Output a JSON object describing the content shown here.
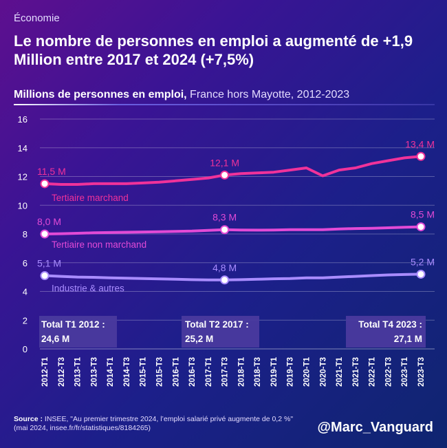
{
  "header": {
    "kicker": "Économie",
    "title": "Le nombre de personnes en emploi a augmenté de +1,9 Million entre 2017 et 2024 (+7,5%)",
    "subtitle_bold": "Millions de personnes en emploi,",
    "subtitle_light": " France hors Mayotte, 2012-2023"
  },
  "chart_data": {
    "type": "line",
    "x": [
      "2012-T1",
      "2012-T3",
      "2013-T1",
      "2013-T3",
      "2014-T1",
      "2014-T3",
      "2015-T1",
      "2015-T3",
      "2016-T1",
      "2016-T3",
      "2017-T1",
      "2017-T3",
      "2018-T1",
      "2018-T3",
      "2019-T1",
      "2019-T3",
      "2020-T1",
      "2020-T3",
      "2021-T1",
      "2021-T3",
      "2022-T1",
      "2022-T3",
      "2023-T1",
      "2023-T3"
    ],
    "ylim": [
      0,
      16
    ],
    "yticks": [
      0,
      2,
      4,
      6,
      8,
      10,
      12,
      14,
      16
    ],
    "grid": true,
    "series": [
      {
        "name": "Tertiaire marchand",
        "color": "#f0329a",
        "values": [
          11.5,
          11.45,
          11.45,
          11.5,
          11.5,
          11.5,
          11.55,
          11.6,
          11.7,
          11.8,
          11.9,
          12.1,
          12.2,
          12.25,
          12.3,
          12.45,
          12.6,
          12.05,
          12.45,
          12.6,
          12.9,
          13.1,
          13.3,
          13.4
        ]
      },
      {
        "name": "Tertiaire non marchand",
        "color": "#e24ad6",
        "values": [
          8.0,
          8.02,
          8.05,
          8.08,
          8.1,
          8.12,
          8.14,
          8.16,
          8.18,
          8.2,
          8.25,
          8.3,
          8.28,
          8.27,
          8.28,
          8.3,
          8.3,
          8.3,
          8.35,
          8.38,
          8.4,
          8.43,
          8.47,
          8.5
        ]
      },
      {
        "name": "Industrie & autres",
        "color": "#a98cff",
        "values": [
          5.1,
          5.05,
          5.0,
          4.98,
          4.95,
          4.92,
          4.9,
          4.87,
          4.85,
          4.82,
          4.8,
          4.8,
          4.82,
          4.85,
          4.88,
          4.9,
          4.95,
          4.95,
          5.0,
          5.05,
          5.1,
          5.15,
          5.18,
          5.2
        ]
      }
    ],
    "annotations": [
      {
        "series": 0,
        "x": "2012-T1",
        "label": "11,5 M"
      },
      {
        "series": 0,
        "x": "2017-T3",
        "label": "12,1 M"
      },
      {
        "series": 0,
        "x": "2023-T3",
        "label": "13,4 M"
      },
      {
        "series": 1,
        "x": "2012-T1",
        "label": "8,0 M"
      },
      {
        "series": 1,
        "x": "2017-T3",
        "label": "8,3 M"
      },
      {
        "series": 1,
        "x": "2023-T3",
        "label": "8,5 M"
      },
      {
        "series": 2,
        "x": "2012-T1",
        "label": "5,1 M"
      },
      {
        "series": 2,
        "x": "2017-T3",
        "label": "4,8 M"
      },
      {
        "series": 2,
        "x": "2023-T3",
        "label": "5,2 M"
      }
    ],
    "totals": [
      {
        "label": "Total T1 2012 :",
        "value": "24,6 M"
      },
      {
        "label": "Total T2 2017 :",
        "value": "25,2 M"
      },
      {
        "label": "Total T4 2023 :",
        "value": "27,1 M"
      }
    ]
  },
  "footer": {
    "source_label": "Source :",
    "source_text": " INSEE, \"Au premier trimestre 2024, l’emploi salarié privé augmente de 0,2 %\" (mai 2024, insee.fr/fr/statistiques/8184265)",
    "handle": "@Marc_Vanguard"
  },
  "colors": {
    "background_start": "#5e0f8f",
    "background_end": "#0f2570",
    "total_box": "#4a3a9e"
  }
}
